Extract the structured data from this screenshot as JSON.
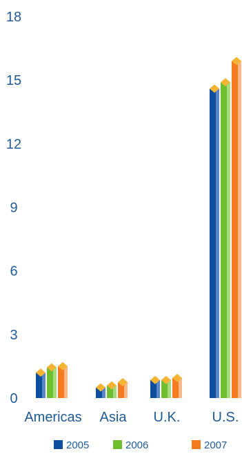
{
  "chart_data": {
    "type": "bar",
    "categories": [
      "Americas",
      "Asia",
      "U.K.",
      "U.S."
    ],
    "series": [
      {
        "name": "2005",
        "values": [
          1.2,
          0.5,
          0.85,
          14.6
        ],
        "color": "#0d4f9e",
        "shade": "#5a86c4"
      },
      {
        "name": "2006",
        "values": [
          1.45,
          0.6,
          0.85,
          14.9
        ],
        "color": "#6fbe2f",
        "shade": "#a6da7e"
      },
      {
        "name": "2007",
        "values": [
          1.5,
          0.75,
          0.95,
          15.9
        ],
        "color": "#f47b20",
        "shade": "#f9b887"
      }
    ],
    "cap_color": "#f6b434",
    "y_ticks": [
      "0",
      "3",
      "6",
      "9",
      "12",
      "15",
      "18"
    ],
    "ylim": [
      0,
      18
    ],
    "grid": false,
    "legend_position": "bottom"
  }
}
